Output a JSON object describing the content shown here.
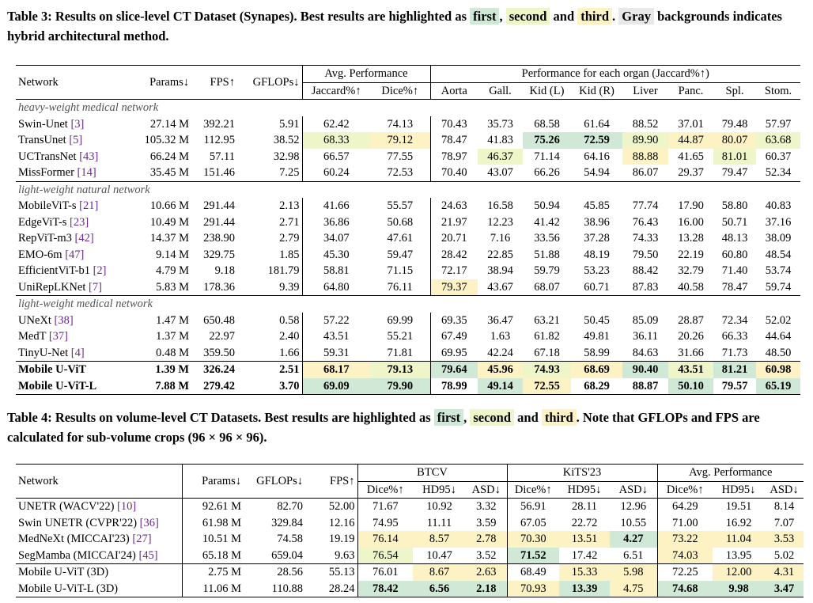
{
  "caption1": {
    "prefix": "Table 3: Results on slice-level CT Dataset (Synapes). Best results are highlighted as ",
    "first": "first",
    "comma": ", ",
    "second": "second",
    "and": " and ",
    "third": "third",
    "dot": ". ",
    "gray": "Gray",
    "suffix": " backgrounds indicates hybrid architectural method."
  },
  "caption2": {
    "prefix": "Table 4: Results on volume-level CT Datasets. Best results are highlighted as ",
    "first": "first",
    "comma": ", ",
    "second": "second",
    "and": " and ",
    "third": "third",
    "suffix": ". Note that GFLOPs and FPS are calculated for sub-volume crops (96 × 96 × 96)."
  },
  "table1": {
    "header": {
      "network": "Network",
      "params": "Params↓",
      "fps": "FPS↑",
      "gflops": "GFLOPs↓",
      "avg_group": "Avg. Performance",
      "organ_group": "Performance for each organ (Jaccard%↑)",
      "cols": [
        "Jaccard%↑",
        "Dice%↑",
        "Aorta",
        "Gall.",
        "Kid (L)",
        "Kid (R)",
        "Liver",
        "Panc.",
        "Spl.",
        "Stom."
      ]
    },
    "sections": [
      {
        "title": "heavy-weight medical network",
        "rows": [
          {
            "name": "Swin-Unet",
            "ref": "[3]",
            "cells": [
              "27.14 M",
              "392.21",
              "5.91",
              "62.42",
              "74.13",
              "70.43",
              "35.73",
              "68.58",
              "61.64",
              "88.52",
              "37.01",
              "79.48",
              "57.97"
            ],
            "hl": [
              "",
              "",
              "",
              "",
              "",
              "",
              "",
              "",
              "",
              "",
              "",
              "",
              ""
            ]
          },
          {
            "name": "TransUnet",
            "ref": "[5]",
            "cells": [
              "105.32 M",
              "112.95",
              "38.52",
              "68.33",
              "79.12",
              "78.47",
              "41.83",
              "75.26",
              "72.59",
              "89.90",
              "44.87",
              "80.07",
              "63.68"
            ],
            "hl": [
              "",
              "",
              "",
              "c2",
              "c3",
              "",
              "",
              "c1",
              "c1",
              "c2",
              "c3",
              "c3",
              "c2"
            ]
          },
          {
            "name": "UCTransNet",
            "ref": "[43]",
            "cells": [
              "66.24 M",
              "57.11",
              "32.98",
              "66.57",
              "77.55",
              "78.97",
              "46.37",
              "71.14",
              "64.16",
              "88.88",
              "41.65",
              "81.01",
              "60.37"
            ],
            "hl": [
              "",
              "",
              "",
              "",
              "",
              "",
              "c2",
              "",
              "",
              "c3",
              "",
              "c2",
              ""
            ]
          },
          {
            "name": "MissFormer",
            "ref": "[14]",
            "cells": [
              "35.45 M",
              "151.46",
              "7.25",
              "60.24",
              "72.53",
              "70.40",
              "43.07",
              "66.26",
              "54.94",
              "86.07",
              "29.37",
              "79.47",
              "52.34"
            ],
            "hl": [
              "",
              "",
              "",
              "",
              "",
              "",
              "",
              "",
              "",
              "",
              "",
              "",
              ""
            ]
          }
        ]
      },
      {
        "title": "light-weight natural network",
        "rows": [
          {
            "name": "MobileViT-s",
            "ref": "[21]",
            "cells": [
              "10.66 M",
              "291.44",
              "2.13",
              "41.66",
              "55.57",
              "24.63",
              "16.58",
              "50.94",
              "45.85",
              "77.74",
              "17.90",
              "58.80",
              "40.83"
            ],
            "hl": [
              "",
              "",
              "",
              "",
              "",
              "",
              "",
              "",
              "",
              "",
              "",
              "",
              ""
            ]
          },
          {
            "name": "EdgeViT-s",
            "ref": "[23]",
            "cells": [
              "10.49 M",
              "291.44",
              "2.71",
              "36.86",
              "50.68",
              "21.97",
              "12.23",
              "41.42",
              "38.96",
              "76.43",
              "16.00",
              "50.71",
              "37.16"
            ],
            "hl": [
              "",
              "",
              "",
              "",
              "",
              "",
              "",
              "",
              "",
              "",
              "",
              "",
              ""
            ]
          },
          {
            "name": "RepViT-m3",
            "ref": "[42]",
            "cells": [
              "14.37 M",
              "238.90",
              "2.79",
              "34.07",
              "47.61",
              "20.71",
              "7.16",
              "33.56",
              "37.28",
              "74.33",
              "13.28",
              "48.13",
              "38.09"
            ],
            "hl": [
              "",
              "",
              "",
              "",
              "",
              "",
              "",
              "",
              "",
              "",
              "",
              "",
              ""
            ]
          },
          {
            "name": "EMO-6m",
            "ref": "[47]",
            "cells": [
              "9.14 M",
              "329.75",
              "1.85",
              "45.30",
              "59.47",
              "28.42",
              "22.85",
              "51.88",
              "48.19",
              "79.50",
              "22.19",
              "60.80",
              "48.54"
            ],
            "hl": [
              "",
              "",
              "",
              "",
              "",
              "",
              "",
              "",
              "",
              "",
              "",
              "",
              ""
            ]
          },
          {
            "name": "EfficientViT-b1",
            "ref": "[2]",
            "cells": [
              "4.79 M",
              "9.18",
              "181.79",
              "58.81",
              "71.15",
              "72.17",
              "38.94",
              "59.79",
              "53.23",
              "88.42",
              "32.79",
              "71.40",
              "53.74"
            ],
            "hl": [
              "",
              "",
              "",
              "",
              "",
              "",
              "",
              "",
              "",
              "",
              "",
              "",
              ""
            ]
          },
          {
            "name": "UniRepLKNet",
            "ref": "[7]",
            "cells": [
              "5.83 M",
              "178.36",
              "9.39",
              "64.80",
              "76.11",
              "79.37",
              "43.67",
              "68.07",
              "60.71",
              "87.83",
              "40.58",
              "78.47",
              "59.74"
            ],
            "hl": [
              "",
              "",
              "",
              "",
              "",
              "c3",
              "",
              "",
              "",
              "",
              "",
              "",
              ""
            ]
          }
        ]
      },
      {
        "title": "light-weight medical network",
        "rows": [
          {
            "name": "UNeXt",
            "ref": "[38]",
            "cells": [
              "1.47 M",
              "650.48",
              "0.58",
              "57.22",
              "69.99",
              "69.35",
              "36.47",
              "63.21",
              "50.45",
              "85.09",
              "28.87",
              "72.34",
              "52.02"
            ],
            "hl": [
              "",
              "",
              "",
              "",
              "",
              "",
              "",
              "",
              "",
              "",
              "",
              "",
              ""
            ]
          },
          {
            "name": "MedT",
            "ref": "[37]",
            "cells": [
              "1.37 M",
              "22.97",
              "2.40",
              "43.51",
              "55.21",
              "67.49",
              "1.63",
              "61.82",
              "49.81",
              "36.11",
              "20.26",
              "66.33",
              "44.64"
            ],
            "hl": [
              "",
              "",
              "",
              "",
              "",
              "",
              "",
              "",
              "",
              "",
              "",
              "",
              ""
            ]
          },
          {
            "name": "TinyU-Net",
            "ref": "[4]",
            "cells": [
              "0.48 M",
              "359.50",
              "1.66",
              "59.31",
              "71.81",
              "69.95",
              "42.24",
              "67.18",
              "58.99",
              "84.63",
              "31.66",
              "71.73",
              "48.50"
            ],
            "hl": [
              "",
              "",
              "",
              "",
              "",
              "",
              "",
              "",
              "",
              "",
              "",
              "",
              ""
            ]
          }
        ]
      }
    ],
    "ours": [
      {
        "name": "Mobile U-ViT",
        "cells": [
          "1.39 M",
          "326.24",
          "2.51",
          "68.17",
          "79.13",
          "79.64",
          "45.96",
          "74.93",
          "68.69",
          "90.40",
          "43.51",
          "81.21",
          "60.98"
        ],
        "hl": [
          "",
          "",
          "",
          "c3",
          "c2",
          "c1",
          "c3",
          "c2",
          "c3",
          "c1",
          "c2",
          "c1",
          "c3"
        ]
      },
      {
        "name": "Mobile U-ViT-L",
        "cells": [
          "7.88 M",
          "279.42",
          "3.70",
          "69.09",
          "79.90",
          "78.99",
          "49.14",
          "72.55",
          "68.29",
          "88.87",
          "50.10",
          "79.57",
          "65.19"
        ],
        "hl": [
          "",
          "",
          "",
          "c1",
          "c1",
          "",
          "c1",
          "c3",
          "",
          "",
          "c1",
          "",
          "c1"
        ]
      }
    ]
  },
  "table2": {
    "header": {
      "network": "Network",
      "params": "Params↓",
      "gflops": "GFLOPs↓",
      "fps": "FPS↑",
      "g1": "BTCV",
      "g2": "KiTS'23",
      "g3": "Avg. Performance",
      "cols": [
        "Dice%↑",
        "HD95↓",
        "ASD↓",
        "Dice%↑",
        "HD95↓",
        "ASD↓",
        "Dice%↑",
        "HD95↓",
        "ASD↓"
      ]
    },
    "rows": [
      {
        "name": "UNETR (WACV'22)",
        "ref": "[10]",
        "cells": [
          "92.61 M",
          "82.70",
          "52.00",
          "71.67",
          "10.92",
          "3.32",
          "56.91",
          "28.11",
          "12.96",
          "64.29",
          "19.51",
          "8.14"
        ],
        "hl": [
          "",
          "",
          "",
          "",
          "",
          "",
          "",
          "",
          "",
          "",
          "",
          ""
        ]
      },
      {
        "name": "Swin UNETR (CVPR'22)",
        "ref": "[36]",
        "cells": [
          "61.98 M",
          "329.84",
          "12.16",
          "74.95",
          "11.11",
          "3.59",
          "67.05",
          "22.72",
          "10.55",
          "71.00",
          "16.92",
          "7.07"
        ],
        "hl": [
          "",
          "",
          "",
          "",
          "",
          "",
          "",
          "",
          "",
          "",
          "",
          ""
        ]
      },
      {
        "name": "MedNeXt (MICCAI'23)",
        "ref": "[27]",
        "cells": [
          "10.51 M",
          "74.58",
          "19.19",
          "76.14",
          "8.57",
          "2.78",
          "70.30",
          "13.51",
          "4.27",
          "73.22",
          "11.04",
          "3.53"
        ],
        "hl": [
          "",
          "",
          "",
          "c3",
          "c3",
          "c3",
          "c3",
          "c3",
          "c1",
          "c3",
          "c3",
          "c3"
        ]
      },
      {
        "name": "SegMamba (MICCAI'24)",
        "ref": "[45]",
        "cells": [
          "65.18 M",
          "659.04",
          "9.63",
          "76.54",
          "10.47",
          "3.52",
          "71.52",
          "17.42",
          "6.51",
          "74.03",
          "13.95",
          "5.02"
        ],
        "hl": [
          "",
          "",
          "",
          "c2",
          "",
          "",
          "c1",
          "",
          "",
          "c3",
          "",
          ""
        ]
      }
    ],
    "ours": [
      {
        "name": "Mobile U-ViT (3D)",
        "cells": [
          "2.75 M",
          "28.56",
          "55.13",
          "76.01",
          "8.67",
          "2.63",
          "68.49",
          "15.33",
          "5.98",
          "72.25",
          "12.00",
          "4.31"
        ],
        "hl": [
          "",
          "",
          "",
          "",
          "c3",
          "c3",
          "",
          "c3",
          "c3",
          "",
          "c3",
          "c3"
        ]
      },
      {
        "name": "Mobile U-ViT-L (3D)",
        "cells": [
          "11.06 M",
          "110.88",
          "28.24",
          "78.42",
          "6.56",
          "2.18",
          "70.93",
          "13.39",
          "4.75",
          "74.68",
          "9.98",
          "3.47"
        ],
        "hl": [
          "",
          "",
          "",
          "c1",
          "c1",
          "c1",
          "c3",
          "c1",
          "c3",
          "c1",
          "c1",
          "c1"
        ]
      }
    ]
  }
}
